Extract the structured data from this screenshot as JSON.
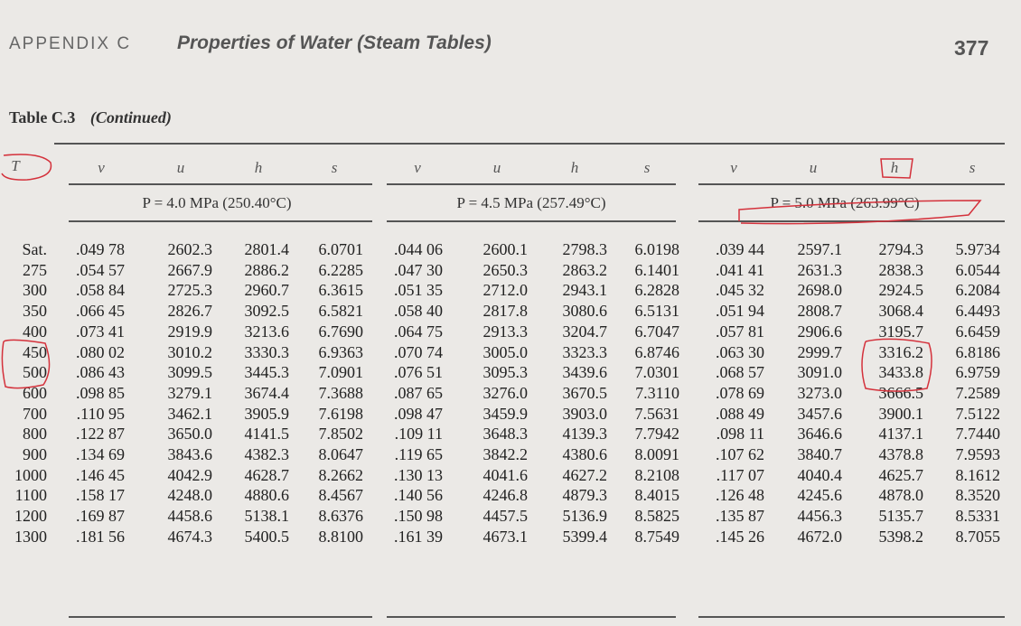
{
  "header": {
    "appendix": "APPENDIX C",
    "title": "Properties of Water (Steam Tables)",
    "page_number": "377"
  },
  "table": {
    "label": "Table C.3",
    "continued": "(Continued)",
    "temp_header": "T",
    "column_symbols": [
      "v",
      "u",
      "h",
      "s"
    ],
    "pressure_blocks": [
      {
        "label": "P = 4.0 MPa (250.40°C)"
      },
      {
        "label": "P = 4.5 MPa (257.49°C)"
      },
      {
        "label": "P = 5.0 MPa (263.99°C)"
      }
    ],
    "rows": [
      {
        "T": "Sat.",
        "vals": [
          ".049 78",
          "2602.3",
          "2801.4",
          "6.0701",
          ".044 06",
          "2600.1",
          "2798.3",
          "6.0198",
          ".039 44",
          "2597.1",
          "2794.3",
          "5.9734"
        ]
      },
      {
        "T": "275",
        "vals": [
          ".054 57",
          "2667.9",
          "2886.2",
          "6.2285",
          ".047 30",
          "2650.3",
          "2863.2",
          "6.1401",
          ".041 41",
          "2631.3",
          "2838.3",
          "6.0544"
        ]
      },
      {
        "T": "300",
        "vals": [
          ".058 84",
          "2725.3",
          "2960.7",
          "6.3615",
          ".051 35",
          "2712.0",
          "2943.1",
          "6.2828",
          ".045 32",
          "2698.0",
          "2924.5",
          "6.2084"
        ]
      },
      {
        "T": "350",
        "vals": [
          ".066 45",
          "2826.7",
          "3092.5",
          "6.5821",
          ".058 40",
          "2817.8",
          "3080.6",
          "6.5131",
          ".051 94",
          "2808.7",
          "3068.4",
          "6.4493"
        ]
      },
      {
        "T": "400",
        "vals": [
          ".073 41",
          "2919.9",
          "3213.6",
          "6.7690",
          ".064 75",
          "2913.3",
          "3204.7",
          "6.7047",
          ".057 81",
          "2906.6",
          "3195.7",
          "6.6459"
        ]
      },
      {
        "T": "450",
        "vals": [
          ".080 02",
          "3010.2",
          "3330.3",
          "6.9363",
          ".070 74",
          "3005.0",
          "3323.3",
          "6.8746",
          ".063 30",
          "2999.7",
          "3316.2",
          "6.8186"
        ]
      },
      {
        "T": "500",
        "vals": [
          ".086 43",
          "3099.5",
          "3445.3",
          "7.0901",
          ".076 51",
          "3095.3",
          "3439.6",
          "7.0301",
          ".068 57",
          "3091.0",
          "3433.8",
          "6.9759"
        ]
      },
      {
        "T": "600",
        "vals": [
          ".098 85",
          "3279.1",
          "3674.4",
          "7.3688",
          ".087 65",
          "3276.0",
          "3670.5",
          "7.3110",
          ".078 69",
          "3273.0",
          "3666.5",
          "7.2589"
        ]
      },
      {
        "T": "700",
        "vals": [
          ".110 95",
          "3462.1",
          "3905.9",
          "7.6198",
          ".098 47",
          "3459.9",
          "3903.0",
          "7.5631",
          ".088 49",
          "3457.6",
          "3900.1",
          "7.5122"
        ]
      },
      {
        "T": "800",
        "vals": [
          ".122 87",
          "3650.0",
          "4141.5",
          "7.8502",
          ".109 11",
          "3648.3",
          "4139.3",
          "7.7942",
          ".098 11",
          "3646.6",
          "4137.1",
          "7.7440"
        ]
      },
      {
        "T": "900",
        "vals": [
          ".134 69",
          "3843.6",
          "4382.3",
          "8.0647",
          ".119 65",
          "3842.2",
          "4380.6",
          "8.0091",
          ".107 62",
          "3840.7",
          "4378.8",
          "7.9593"
        ]
      },
      {
        "T": "1000",
        "vals": [
          ".146 45",
          "4042.9",
          "4628.7",
          "8.2662",
          ".130 13",
          "4041.6",
          "4627.2",
          "8.2108",
          ".117 07",
          "4040.4",
          "4625.7",
          "8.1612"
        ]
      },
      {
        "T": "1100",
        "vals": [
          ".158 17",
          "4248.0",
          "4880.6",
          "8.4567",
          ".140 56",
          "4246.8",
          "4879.3",
          "8.4015",
          ".126 48",
          "4245.6",
          "4878.0",
          "8.3520"
        ]
      },
      {
        "T": "1200",
        "vals": [
          ".169 87",
          "4458.6",
          "5138.1",
          "8.6376",
          ".150 98",
          "4457.5",
          "5136.9",
          "8.5825",
          ".135 87",
          "4456.3",
          "5135.7",
          "8.5331"
        ]
      },
      {
        "T": "1300",
        "vals": [
          ".181 56",
          "4674.3",
          "5400.5",
          "8.8100",
          ".161 39",
          "4673.1",
          "5399.4",
          "8.7549",
          ".145 26",
          "4672.0",
          "5398.2",
          "8.7055"
        ]
      }
    ]
  },
  "colors": {
    "annotation": "#d4313b",
    "ink": "#222222",
    "paper": "#ebe9e6"
  }
}
